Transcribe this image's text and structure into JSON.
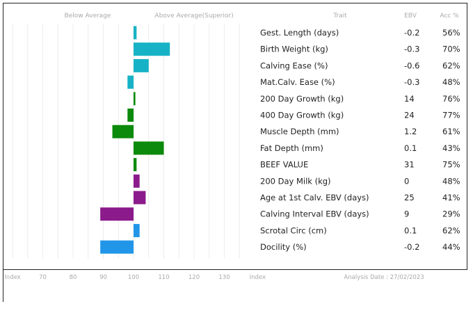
{
  "chart_data": {
    "type": "bar",
    "orientation": "horizontal",
    "baseline": 100,
    "xlim": [
      60,
      145
    ],
    "header": {
      "below": "Below Average",
      "above": "Above Average(Superior)",
      "trait": "Trait",
      "ebv": "EBV",
      "acc": "Acc %"
    },
    "ticks": [
      {
        "label": "Index",
        "value": 60
      },
      {
        "label": "70",
        "value": 70
      },
      {
        "label": "80",
        "value": 80
      },
      {
        "label": "90",
        "value": 90
      },
      {
        "label": "100",
        "value": 100
      },
      {
        "label": "110",
        "value": 110
      },
      {
        "label": "120",
        "value": 120
      },
      {
        "label": "130",
        "value": 130
      },
      {
        "label": "Index",
        "value": 141
      }
    ],
    "analysis_date": "Analysis Date : 27/02/2023",
    "rows": [
      {
        "trait": "Gest. Length (days)",
        "ebv": "-0.2",
        "acc": "56%",
        "index": 101,
        "color": "#17b2c6"
      },
      {
        "trait": "Birth Weight (kg)",
        "ebv": "-0.3",
        "acc": "70%",
        "index": 112,
        "color": "#17b2c6"
      },
      {
        "trait": "Calving Ease (%)",
        "ebv": "-0.6",
        "acc": "62%",
        "index": 105,
        "color": "#17b2c6"
      },
      {
        "trait": "Mat.Calv. Ease (%)",
        "ebv": "-0.3",
        "acc": "48%",
        "index": 98,
        "color": "#17b2c6"
      },
      {
        "trait": "200 Day Growth (kg)",
        "ebv": "14",
        "acc": "76%",
        "index": 100.6,
        "color": "#0b8a0b"
      },
      {
        "trait": "400 Day Growth (kg)",
        "ebv": "24",
        "acc": "77%",
        "index": 98,
        "color": "#0b8a0b"
      },
      {
        "trait": "Muscle Depth (mm)",
        "ebv": "1.2",
        "acc": "61%",
        "index": 93,
        "color": "#0b8a0b"
      },
      {
        "trait": "Fat Depth (mm)",
        "ebv": "0.1",
        "acc": "43%",
        "index": 110,
        "color": "#0b8a0b"
      },
      {
        "trait": "BEEF VALUE",
        "ebv": "31",
        "acc": "75%",
        "index": 101,
        "color": "#0b8a0b"
      },
      {
        "trait": "200 Day Milk (kg)",
        "ebv": "0",
        "acc": "48%",
        "index": 102,
        "color": "#8b1a8b"
      },
      {
        "trait": "Age at 1st Calv. EBV (days)",
        "ebv": "25",
        "acc": "41%",
        "index": 104,
        "color": "#8b1a8b"
      },
      {
        "trait": "Calving Interval EBV (days)",
        "ebv": "9",
        "acc": "29%",
        "index": 89,
        "color": "#8b1a8b"
      },
      {
        "trait": "Scrotal Circ (cm)",
        "ebv": "0.1",
        "acc": "62%",
        "index": 102,
        "color": "#2196e8"
      },
      {
        "trait": "Docility (%)",
        "ebv": "-0.2",
        "acc": "44%",
        "index": 89,
        "color": "#2196e8"
      }
    ]
  }
}
